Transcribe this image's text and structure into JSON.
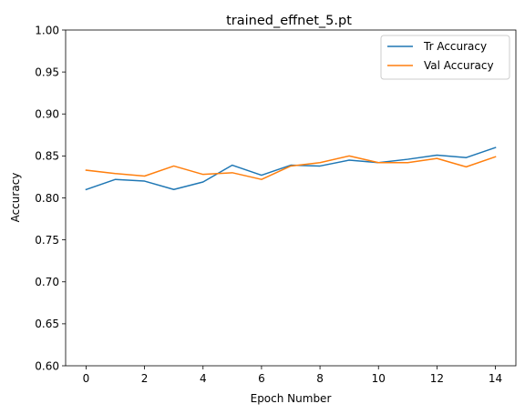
{
  "chart_data": {
    "type": "line",
    "title": "trained_effnet_5.pt",
    "xlabel": "Epoch Number",
    "ylabel": "Accuracy",
    "xlim": [
      -0.7,
      14.7
    ],
    "ylim": [
      0.6,
      1.0
    ],
    "x_ticks": [
      0,
      2,
      4,
      6,
      8,
      10,
      12,
      14
    ],
    "y_ticks": [
      "0.60",
      "0.65",
      "0.70",
      "0.75",
      "0.80",
      "0.85",
      "0.90",
      "0.95",
      "1.00"
    ],
    "grid": false,
    "legend_position": "top-right",
    "x": [
      0,
      1,
      2,
      3,
      4,
      5,
      6,
      7,
      8,
      9,
      10,
      11,
      12,
      13,
      14
    ],
    "series": [
      {
        "name": "Tr Accuracy",
        "color": "#1f77b4",
        "values": [
          0.81,
          0.822,
          0.82,
          0.81,
          0.819,
          0.839,
          0.827,
          0.839,
          0.838,
          0.845,
          0.842,
          0.846,
          0.851,
          0.848,
          0.86
        ]
      },
      {
        "name": "Val Accuracy",
        "color": "#ff7f0e",
        "values": [
          0.833,
          0.829,
          0.826,
          0.838,
          0.828,
          0.83,
          0.822,
          0.838,
          0.842,
          0.85,
          0.842,
          0.842,
          0.847,
          0.837,
          0.849
        ]
      }
    ]
  }
}
